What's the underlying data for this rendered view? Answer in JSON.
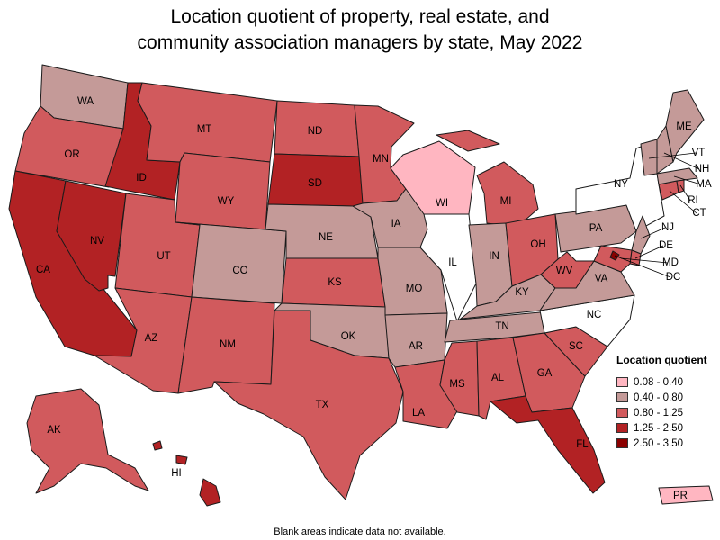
{
  "title": {
    "line1": "Location quotient of property, real estate, and",
    "line2": "community association managers by state, May 2022"
  },
  "legend": {
    "title": "Location quotient",
    "items": [
      {
        "label": "0.08 - 0.40",
        "color": "#ffb6c1"
      },
      {
        "label": "0.40 - 0.80",
        "color": "#c49a98"
      },
      {
        "label": "0.80 - 1.25",
        "color": "#d15a5d"
      },
      {
        "label": "1.25 - 2.50",
        "color": "#b22224"
      },
      {
        "label": "2.50 - 3.50",
        "color": "#8b0000"
      }
    ]
  },
  "footnote": "Blank areas indicate data not available.",
  "states": [
    {
      "abbr": "WA",
      "bin": 1
    },
    {
      "abbr": "OR",
      "bin": 2
    },
    {
      "abbr": "CA",
      "bin": 3
    },
    {
      "abbr": "NV",
      "bin": 3
    },
    {
      "abbr": "ID",
      "bin": 3
    },
    {
      "abbr": "MT",
      "bin": 2
    },
    {
      "abbr": "WY",
      "bin": 2
    },
    {
      "abbr": "UT",
      "bin": 2
    },
    {
      "abbr": "AZ",
      "bin": 2
    },
    {
      "abbr": "CO",
      "bin": 1
    },
    {
      "abbr": "NM",
      "bin": 2
    },
    {
      "abbr": "ND",
      "bin": 2
    },
    {
      "abbr": "SD",
      "bin": 3
    },
    {
      "abbr": "NE",
      "bin": 1
    },
    {
      "abbr": "KS",
      "bin": 2
    },
    {
      "abbr": "OK",
      "bin": 1
    },
    {
      "abbr": "TX",
      "bin": 2
    },
    {
      "abbr": "MN",
      "bin": 2
    },
    {
      "abbr": "IA",
      "bin": 1
    },
    {
      "abbr": "MO",
      "bin": 1
    },
    {
      "abbr": "AR",
      "bin": 1
    },
    {
      "abbr": "LA",
      "bin": 2
    },
    {
      "abbr": "WI",
      "bin": 0
    },
    {
      "abbr": "IL",
      "bin": null
    },
    {
      "abbr": "MI",
      "bin": 2
    },
    {
      "abbr": "IN",
      "bin": 1
    },
    {
      "abbr": "OH",
      "bin": 2
    },
    {
      "abbr": "KY",
      "bin": 1
    },
    {
      "abbr": "TN",
      "bin": 1
    },
    {
      "abbr": "MS",
      "bin": 2
    },
    {
      "abbr": "AL",
      "bin": 2
    },
    {
      "abbr": "GA",
      "bin": 2
    },
    {
      "abbr": "FL",
      "bin": 3
    },
    {
      "abbr": "SC",
      "bin": 2
    },
    {
      "abbr": "NC",
      "bin": null
    },
    {
      "abbr": "VA",
      "bin": 1
    },
    {
      "abbr": "WV",
      "bin": 2
    },
    {
      "abbr": "PA",
      "bin": 1
    },
    {
      "abbr": "NY",
      "bin": null
    },
    {
      "abbr": "NJ",
      "bin": 1
    },
    {
      "abbr": "DE",
      "bin": 2
    },
    {
      "abbr": "MD",
      "bin": 2
    },
    {
      "abbr": "DC",
      "bin": 4
    },
    {
      "abbr": "CT",
      "bin": 2
    },
    {
      "abbr": "RI",
      "bin": 2
    },
    {
      "abbr": "MA",
      "bin": 1
    },
    {
      "abbr": "VT",
      "bin": 1
    },
    {
      "abbr": "NH",
      "bin": 1
    },
    {
      "abbr": "ME",
      "bin": 1
    },
    {
      "abbr": "AK",
      "bin": 2
    },
    {
      "abbr": "HI",
      "bin": 3
    },
    {
      "abbr": "PR",
      "bin": 0
    }
  ]
}
